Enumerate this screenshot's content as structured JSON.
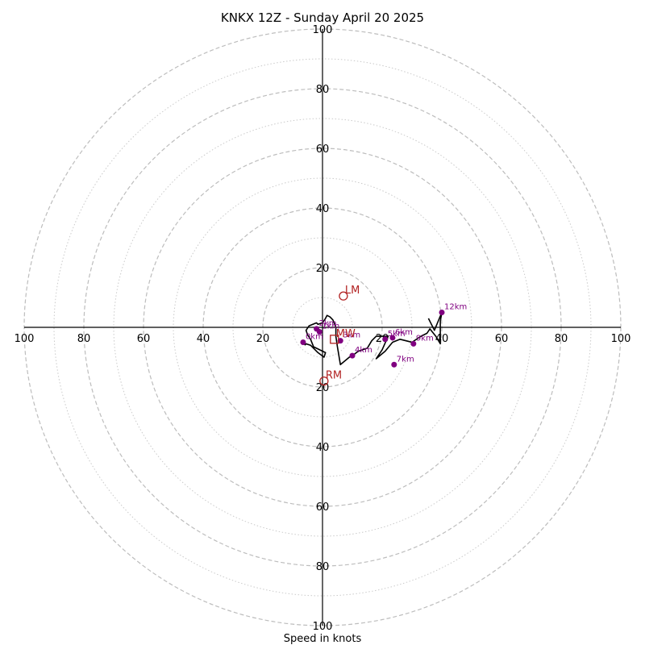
{
  "chart_data": {
    "type": "hodograph",
    "title": "KNKX 12Z - Sunday April 20 2025",
    "xlabel": "Speed in knots",
    "range": 100,
    "ring_step_major": 20,
    "ring_step_minor": 10,
    "tick_values": [
      20,
      40,
      60,
      80,
      100
    ],
    "grid": true,
    "colors": {
      "trace": "#000000",
      "height_marker": "#800080",
      "motion_marker": "#b22222",
      "grid": "#bdbdbd"
    },
    "hodograph_uv": [
      [
        -6,
        -6
      ],
      [
        -5.5,
        -5.5
      ],
      [
        -4,
        -6
      ],
      [
        -1.5,
        -8.5
      ],
      [
        0.5,
        -10
      ],
      [
        1,
        -8.5
      ],
      [
        -3,
        -6.5
      ],
      [
        -4,
        -4
      ],
      [
        -5,
        -2.5
      ],
      [
        -5.5,
        -1
      ],
      [
        -4.5,
        0.5
      ],
      [
        -2,
        1.5
      ],
      [
        -1.5,
        1
      ],
      [
        0,
        1.5
      ],
      [
        1,
        3
      ],
      [
        1.5,
        4
      ],
      [
        2.5,
        3.5
      ],
      [
        3.5,
        2.5
      ],
      [
        4.5,
        0
      ],
      [
        4.5,
        -3
      ],
      [
        5,
        -6.5
      ],
      [
        6,
        -12.5
      ],
      [
        9,
        -10
      ],
      [
        10,
        -9.5
      ],
      [
        12,
        -8
      ],
      [
        15,
        -7
      ],
      [
        16.5,
        -4.5
      ],
      [
        18,
        -3
      ],
      [
        20.5,
        -3
      ],
      [
        22,
        -3
      ],
      [
        20,
        -7.5
      ],
      [
        18,
        -10.5
      ],
      [
        21,
        -8
      ],
      [
        23.5,
        -5
      ],
      [
        26,
        -4
      ],
      [
        30,
        -5
      ],
      [
        33,
        -3
      ],
      [
        35,
        -2
      ],
      [
        36,
        -0.5
      ],
      [
        38,
        -3
      ],
      [
        39.5,
        -5.5
      ],
      [
        39.5,
        2
      ],
      [
        40,
        5
      ],
      [
        37.5,
        -1
      ],
      [
        35.5,
        3
      ]
    ],
    "height_markers": [
      {
        "label": "0km",
        "u": -6.5,
        "v": -5
      },
      {
        "label": "1km",
        "u": -1,
        "v": -1.5
      },
      {
        "label": "2km",
        "u": -2,
        "v": -0.5
      },
      {
        "label": "3km",
        "u": 6,
        "v": -4.5
      },
      {
        "label": "4km",
        "u": 10,
        "v": -9.5
      },
      {
        "label": "5km",
        "u": 21,
        "v": -4
      },
      {
        "label": "6km",
        "u": 23.5,
        "v": -3.5
      },
      {
        "label": "7km",
        "u": 24,
        "v": -12.5
      },
      {
        "label": "9km",
        "u": 30.5,
        "v": -5.5
      },
      {
        "label": "12km",
        "u": 40,
        "v": 5
      }
    ],
    "motion_markers": [
      {
        "label": "LM",
        "u": 7,
        "v": 10.5
      },
      {
        "label": "MW",
        "u": 4,
        "v": -4
      },
      {
        "label": "RM",
        "u": 0.5,
        "v": -18
      }
    ]
  }
}
